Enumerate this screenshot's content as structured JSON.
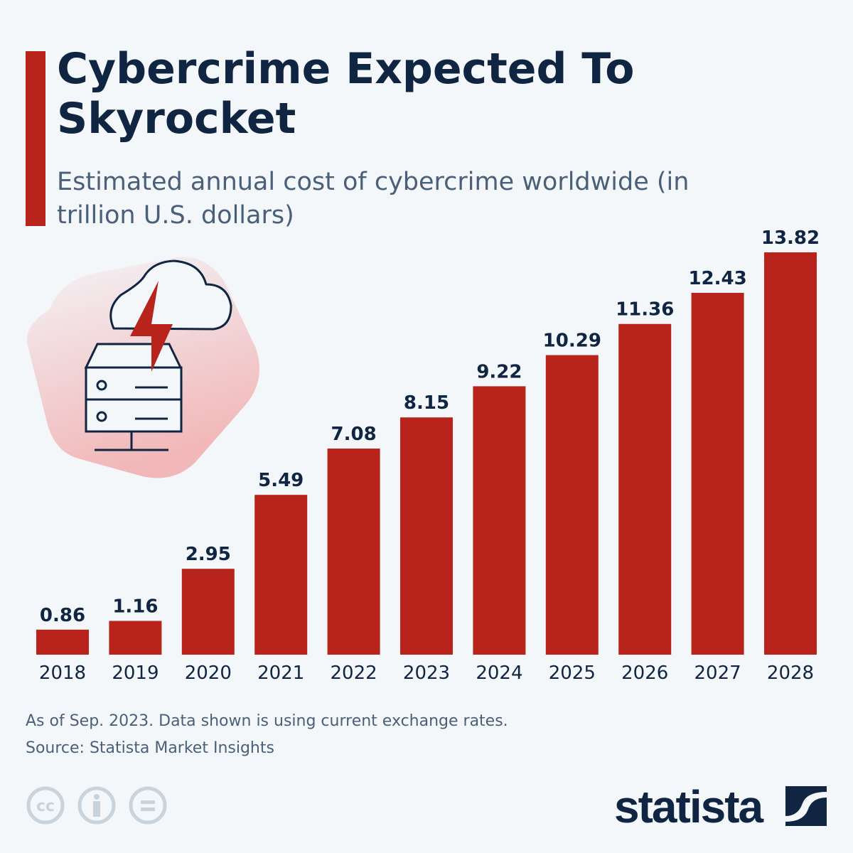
{
  "header": {
    "title": "Cybercrime Expected To Skyrocket",
    "subtitle": "Estimated annual cost of cybercrime worldwide (in trillion U.S. dollars)"
  },
  "chart_data": {
    "type": "bar",
    "title": "Cybercrime Expected To Skyrocket",
    "subtitle": "Estimated annual cost of cybercrime worldwide (in trillion U.S. dollars)",
    "categories": [
      "2018",
      "2019",
      "2020",
      "2021",
      "2022",
      "2023",
      "2024",
      "2025",
      "2026",
      "2027",
      "2028"
    ],
    "values": [
      0.86,
      1.16,
      2.95,
      5.49,
      7.08,
      8.15,
      9.22,
      10.29,
      11.36,
      12.43,
      13.82
    ],
    "value_labels": [
      "0.86",
      "1.16",
      "2.95",
      "5.49",
      "7.08",
      "8.15",
      "9.22",
      "10.29",
      "11.36",
      "12.43",
      "13.82"
    ],
    "xlabel": "",
    "ylabel": "",
    "ylim": [
      0,
      13.82
    ],
    "grid": false,
    "legend": "none",
    "bar_color": "#b8241c"
  },
  "footer": {
    "note": "As of Sep. 2023. Data shown is using current exchange rates.",
    "source": "Source: Statista Market Insights",
    "license_icons": [
      "cc-icon",
      "attribution-icon",
      "no-derivatives-icon"
    ],
    "logo": "statista"
  },
  "colors": {
    "background": "#f3f7fa",
    "text": "#0f2542",
    "accent": "#b8241c",
    "muted": "#4a5f78"
  }
}
